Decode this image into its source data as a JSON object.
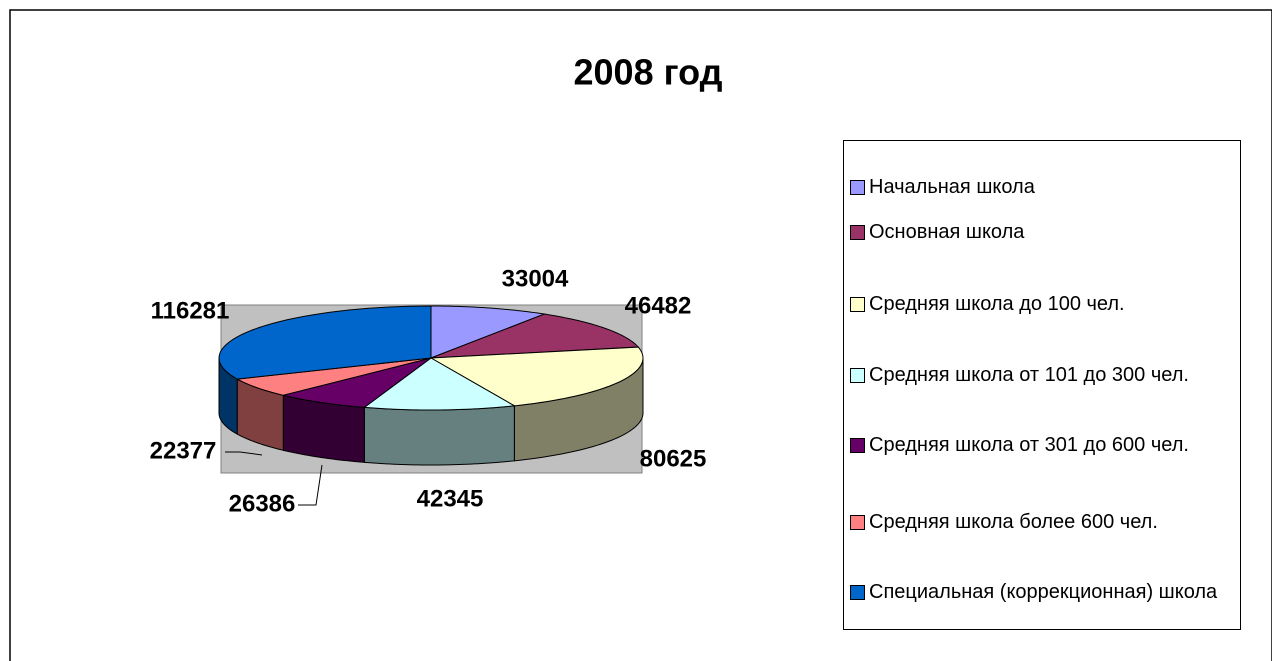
{
  "chart_data": {
    "type": "pie3d",
    "title": "2008 год",
    "categories": [
      "Начальная школа",
      "Основная школа",
      "Средняя школа до 100 чел.",
      "Средняя школа от 101 до 300 чел.",
      "Средняя школа от 301 до 600 чел.",
      "Средняя школа более 600 чел.",
      "Специальная (коррекционная) школа"
    ],
    "values": [
      33004,
      46482,
      80625,
      42345,
      26386,
      22377,
      116281
    ],
    "colors": [
      "#9999ff",
      "#993366",
      "#ffffcc",
      "#ccffff",
      "#660066",
      "#ff8080",
      "#0066cc"
    ],
    "legend": "right"
  }
}
